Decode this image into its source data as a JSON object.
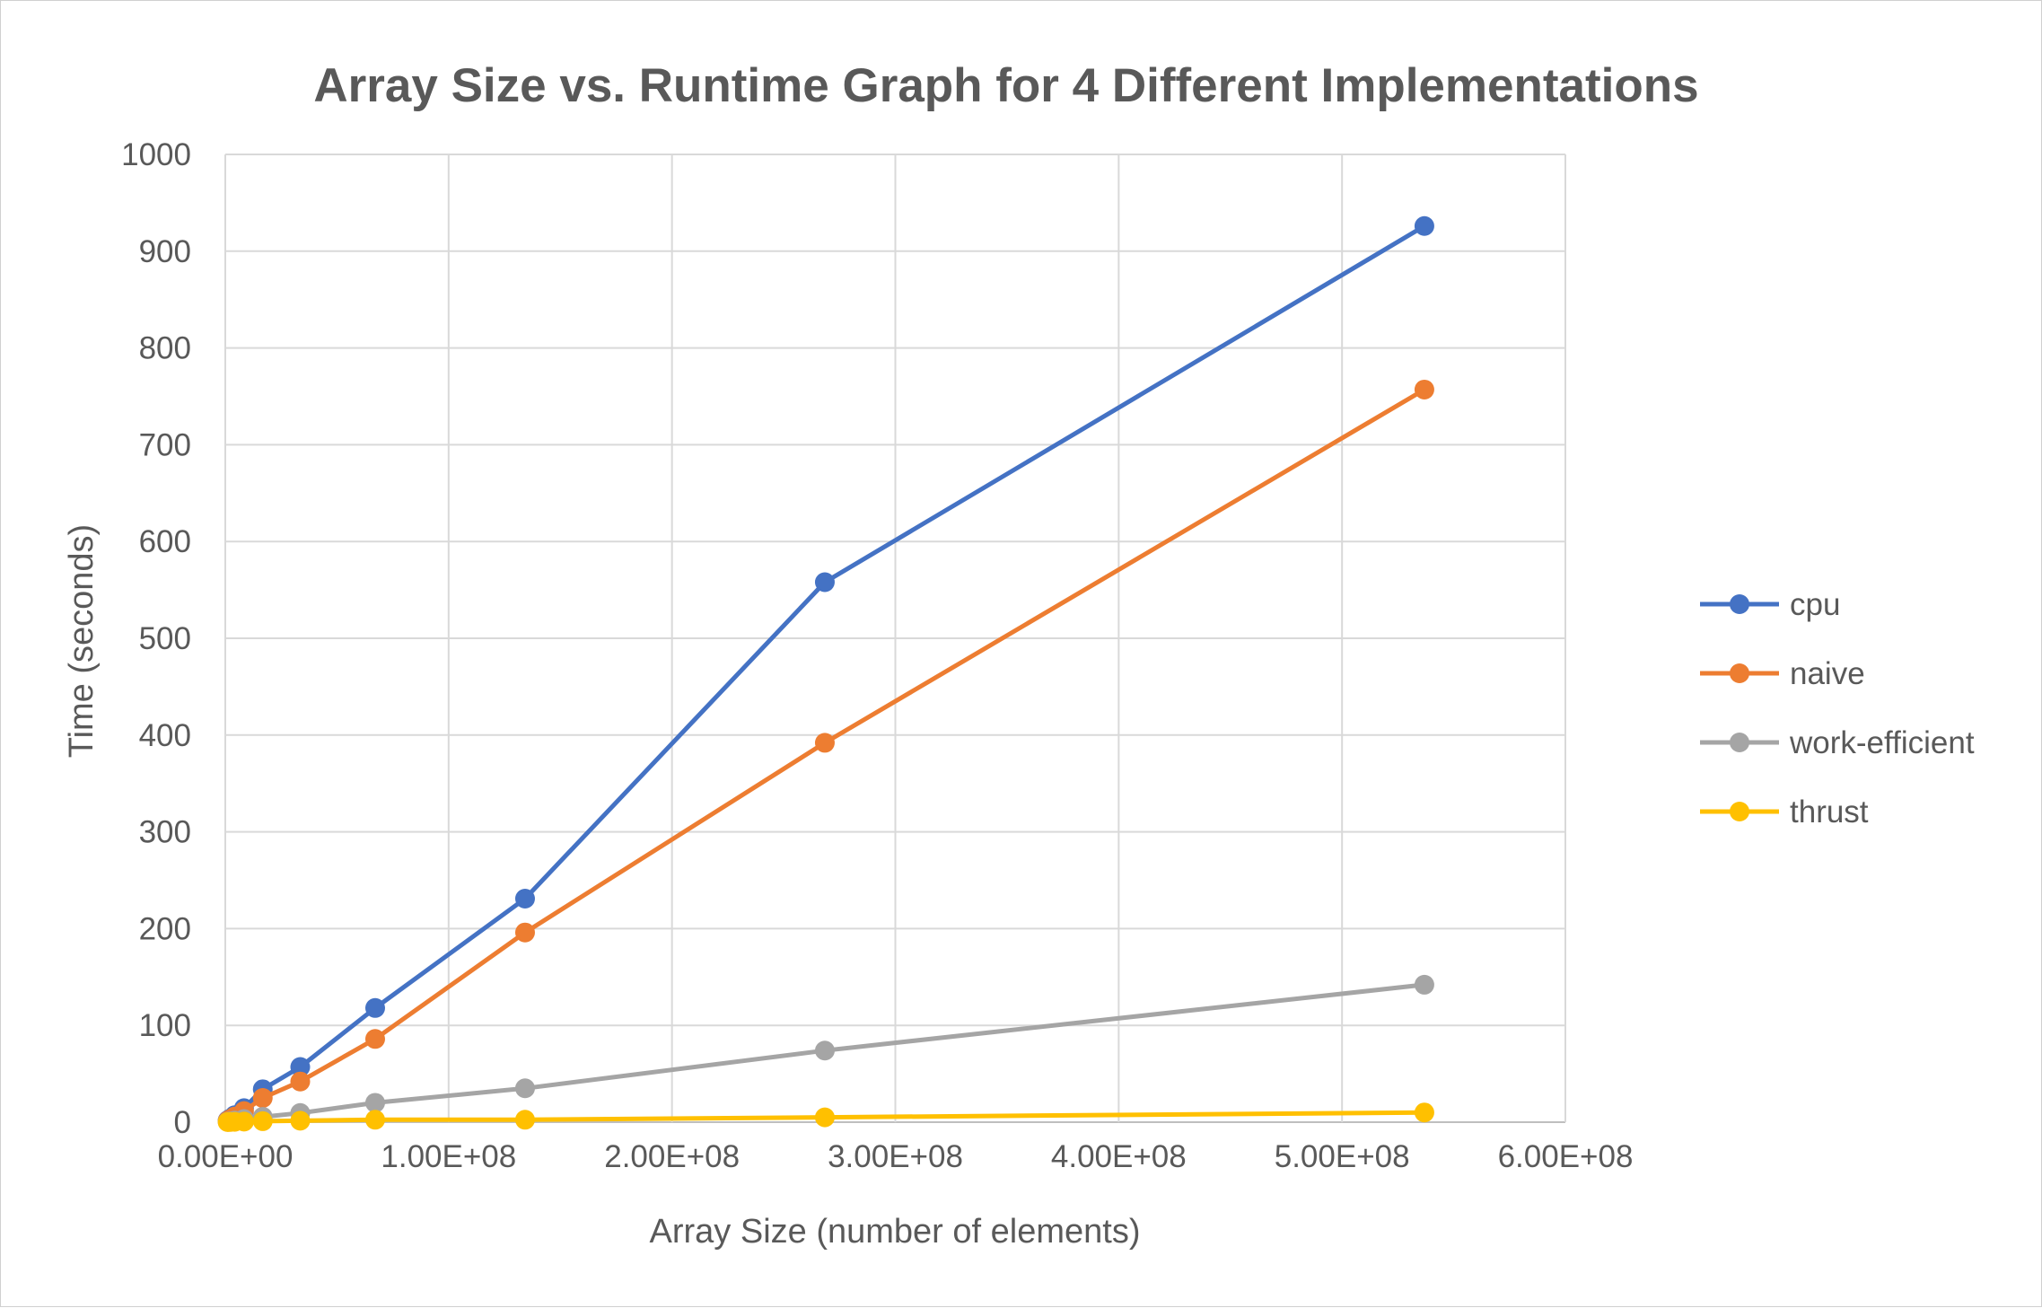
{
  "chart_data": {
    "type": "line",
    "title": "Array Size vs. Runtime Graph for 4 Different Implementations",
    "xlabel": "Array Size (number of elements)",
    "ylabel": "Time (seconds)",
    "xlim": [
      0,
      600000000
    ],
    "ylim": [
      0,
      1000
    ],
    "x_ticks": [
      0,
      100000000,
      200000000,
      300000000,
      400000000,
      500000000,
      600000000
    ],
    "x_tick_labels": [
      "0.00E+00",
      "1.00E+08",
      "2.00E+08",
      "3.00E+08",
      "4.00E+08",
      "5.00E+08",
      "6.00E+08"
    ],
    "y_ticks": [
      0,
      100,
      200,
      300,
      400,
      500,
      600,
      700,
      800,
      900,
      1000
    ],
    "y_tick_labels": [
      "0",
      "100",
      "200",
      "300",
      "400",
      "500",
      "600",
      "700",
      "800",
      "900",
      "1000"
    ],
    "grid": true,
    "legend_position": "right",
    "x": [
      1048576,
      2097152,
      4194304,
      8388608,
      16777216,
      33554432,
      67108864,
      134217728,
      268435456,
      536870912
    ],
    "series": [
      {
        "name": "cpu",
        "color": "#4472C4",
        "values": [
          1.8,
          3.6,
          7.2,
          14.5,
          34,
          57,
          118,
          231,
          558,
          926
        ]
      },
      {
        "name": "naive",
        "color": "#ED7D31",
        "values": [
          1.4,
          2.9,
          5.8,
          11.5,
          25,
          42,
          86,
          196,
          392,
          757
        ]
      },
      {
        "name": "work-efficient",
        "color": "#A5A5A5",
        "values": [
          0.4,
          0.8,
          1.6,
          3.2,
          5.5,
          9.5,
          20,
          35,
          74,
          142
        ]
      },
      {
        "name": "thrust",
        "color": "#FFC000",
        "values": [
          0.1,
          0.2,
          0.4,
          0.6,
          1.0,
          1.5,
          2.5,
          2.5,
          5,
          10
        ]
      }
    ]
  }
}
